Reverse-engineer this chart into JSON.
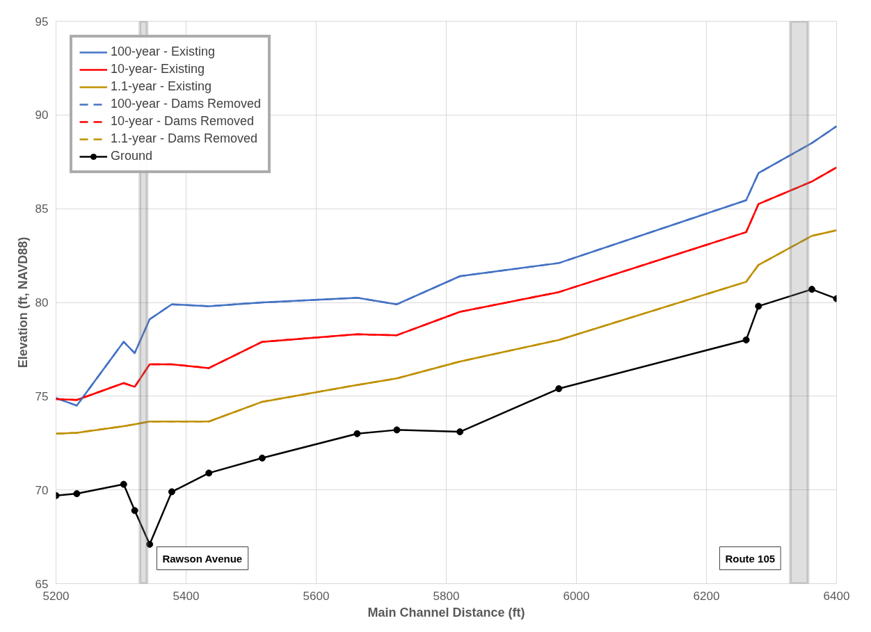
{
  "chart_data": {
    "type": "line",
    "xlabel": "Main Channel Distance (ft)",
    "ylabel": "Elevation (ft, NAVD88)",
    "x": [
      5200,
      5232,
      5304,
      5321,
      5344,
      5378,
      5435,
      5517,
      5663,
      5724,
      5821,
      5973,
      6261,
      6280,
      6362,
      6400
    ],
    "series": [
      {
        "name": "100-year - Existing",
        "color": "#4472c4",
        "line_style": "solid",
        "values": [
          74.9,
          74.5,
          77.9,
          77.3,
          79.1,
          79.9,
          79.8,
          80.0,
          80.25,
          79.9,
          81.4,
          82.1,
          85.45,
          86.9,
          88.5,
          89.4
        ]
      },
      {
        "name": "10-year- Existing",
        "color": "#ff0000",
        "line_style": "solid",
        "values": [
          74.85,
          74.8,
          75.7,
          75.5,
          76.7,
          76.7,
          76.5,
          77.9,
          78.3,
          78.25,
          79.5,
          80.55,
          83.75,
          85.25,
          86.45,
          87.2
        ]
      },
      {
        "name": "1.1-year - Existing",
        "color": "#bf9000",
        "line_style": "solid",
        "values": [
          73.0,
          73.05,
          73.4,
          73.5,
          73.65,
          73.65,
          73.65,
          74.7,
          75.6,
          75.95,
          76.85,
          78.0,
          81.1,
          82.0,
          83.55,
          83.85
        ]
      },
      {
        "name": "100-year - Dams Removed",
        "color": "#4472c4",
        "line_style": "dashed",
        "values": [
          74.9,
          74.5,
          77.9,
          77.3,
          79.1,
          79.9,
          79.8,
          80.0,
          80.25,
          79.9,
          81.4,
          82.1,
          85.45,
          86.9,
          88.5,
          89.4
        ]
      },
      {
        "name": "10-year - Dams Removed",
        "color": "#ff0000",
        "line_style": "dashed",
        "values": [
          74.85,
          74.8,
          75.7,
          75.5,
          76.7,
          76.7,
          76.5,
          77.9,
          78.3,
          78.25,
          79.5,
          80.55,
          83.75,
          85.25,
          86.45,
          87.2
        ]
      },
      {
        "name": "1.1-year - Dams Removed",
        "color": "#bf9000",
        "line_style": "dashed",
        "values": [
          73.0,
          73.05,
          73.4,
          73.5,
          73.65,
          73.65,
          73.65,
          74.7,
          75.6,
          75.95,
          76.85,
          78.0,
          81.1,
          82.0,
          83.55,
          83.85
        ]
      },
      {
        "name": "Ground",
        "color": "#000000",
        "line_style": "solid",
        "marker": "circle",
        "values": [
          69.7,
          69.8,
          70.3,
          68.9,
          67.1,
          69.9,
          70.9,
          71.7,
          73.0,
          73.2,
          73.1,
          75.4,
          78.0,
          79.8,
          80.7,
          80.2
        ]
      }
    ],
    "bands": [
      {
        "axis": "x",
        "from": 5329,
        "to": 5340,
        "label": "Rawson Avenue",
        "color": "#7f7f7f"
      },
      {
        "axis": "x",
        "from": 6329,
        "to": 6356,
        "label": "Route 105",
        "color": "#7f7f7f"
      }
    ],
    "xlim": [
      5200,
      6400
    ],
    "xticks": [
      5200,
      5400,
      5600,
      5800,
      6000,
      6200,
      6400
    ],
    "ylim": [
      65,
      95
    ],
    "yticks": [
      65,
      70,
      75,
      80,
      85,
      90,
      95
    ],
    "grid": true,
    "legend": "top left"
  }
}
